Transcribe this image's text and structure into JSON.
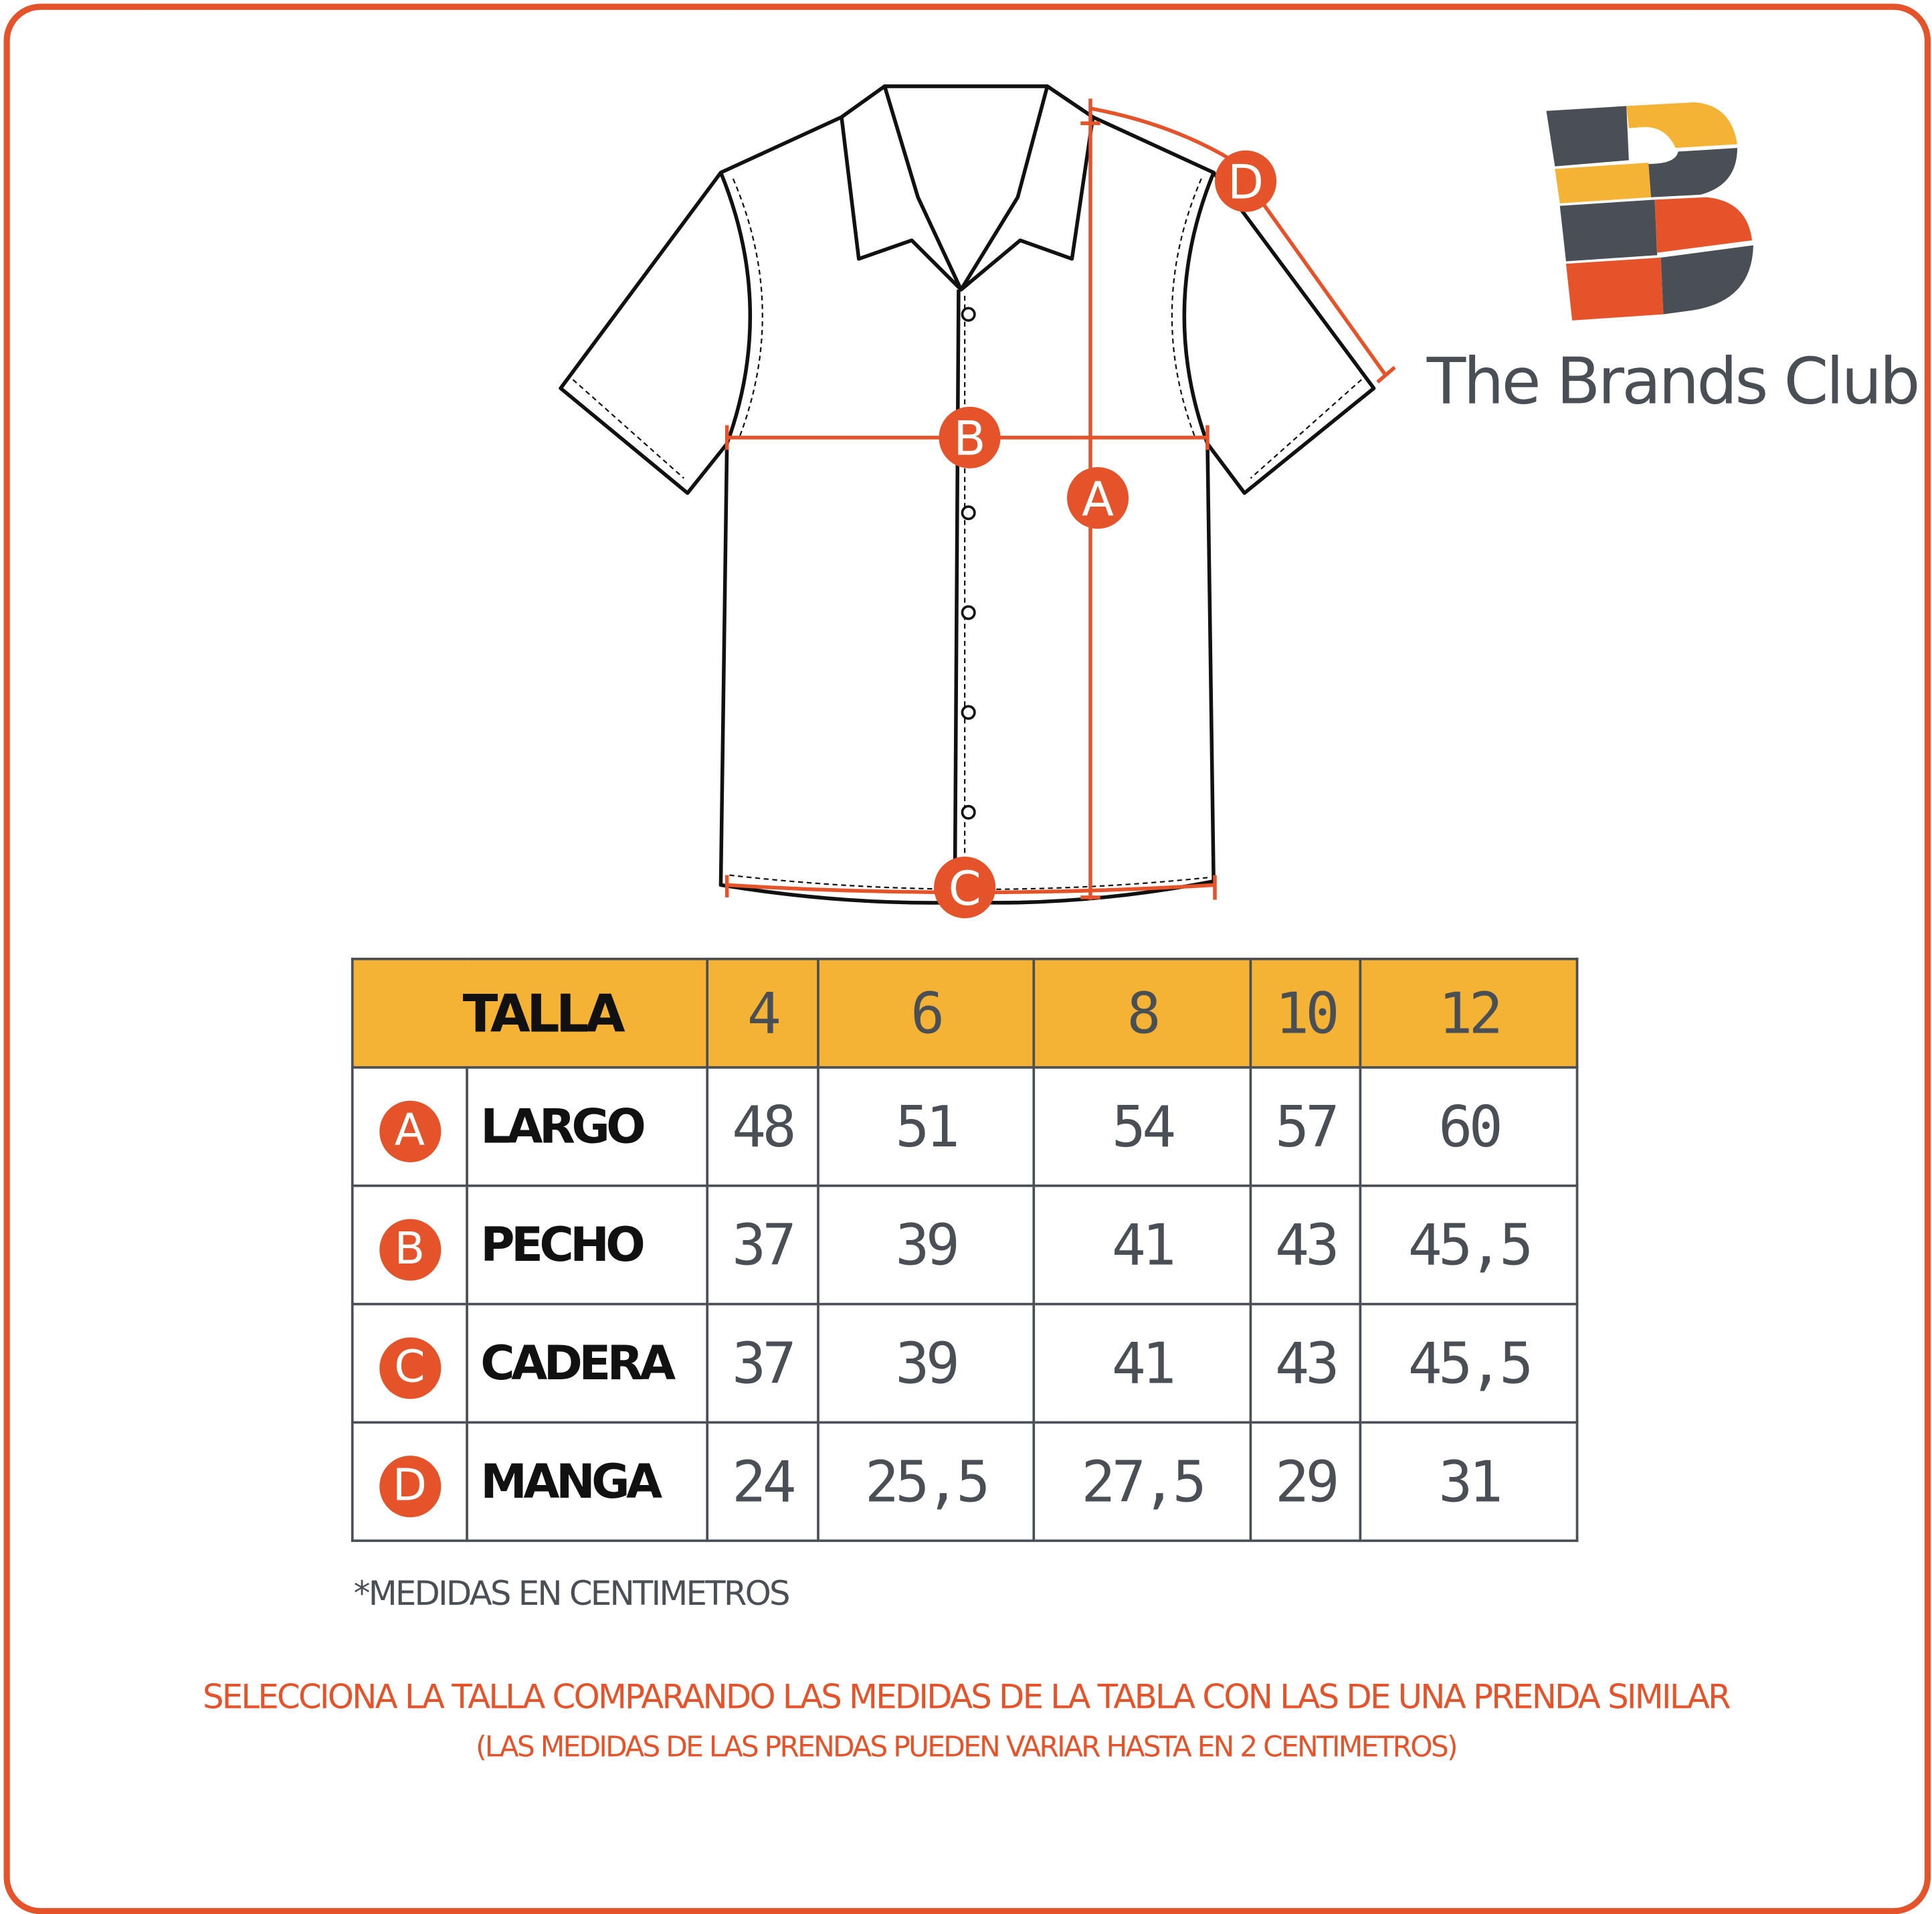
{
  "brand": {
    "name": "The Brands Club",
    "colors": {
      "orange": "#e4532a",
      "yellow": "#f5b335",
      "gray": "#4a4f56"
    }
  },
  "diagram": {
    "markers": [
      "A",
      "B",
      "C",
      "D"
    ]
  },
  "table": {
    "header_label": "TALLA",
    "sizes": [
      "4",
      "6",
      "8",
      "10",
      "12"
    ],
    "rows": [
      {
        "key": "A",
        "label": "LARGO",
        "values": [
          "48",
          "51",
          "54",
          "57",
          "60"
        ]
      },
      {
        "key": "B",
        "label": "PECHO",
        "values": [
          "37",
          "39",
          "41",
          "43",
          "45,5"
        ]
      },
      {
        "key": "C",
        "label": "CADERA",
        "values": [
          "37",
          "39",
          "41",
          "43",
          "45,5"
        ]
      },
      {
        "key": "D",
        "label": "MANGA",
        "values": [
          "24",
          "25,5",
          "27,5",
          "29",
          "31"
        ]
      }
    ]
  },
  "note": "*MEDIDAS EN CENTIMETROS",
  "message_line1": "SELECCIONA LA TALLA COMPARANDO LAS MEDIDAS DE LA TABLA CON LAS DE UNA PRENDA SIMILAR",
  "message_line2": "(LAS MEDIDAS DE LAS PRENDAS PUEDEN VARIAR HASTA EN 2 CENTIMETROS)"
}
